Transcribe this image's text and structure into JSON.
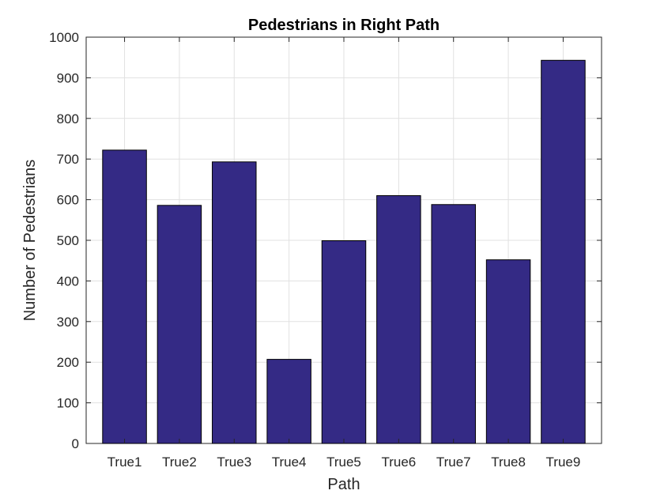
{
  "chart_data": {
    "type": "bar",
    "title": "Pedestrians in Right Path",
    "xlabel": "Path",
    "ylabel": "Number of Pedestrians",
    "categories": [
      "True1",
      "True2",
      "True3",
      "True4",
      "True5",
      "True6",
      "True7",
      "True8",
      "True9"
    ],
    "values": [
      722,
      586,
      693,
      207,
      499,
      610,
      588,
      452,
      943
    ],
    "ylim": [
      0,
      1000
    ],
    "yticks": [
      "0",
      "100",
      "200",
      "300",
      "400",
      "500",
      "600",
      "700",
      "800",
      "900",
      "1000"
    ],
    "grid": true,
    "bar_color": "#342A85",
    "edge_color": "#000000"
  }
}
